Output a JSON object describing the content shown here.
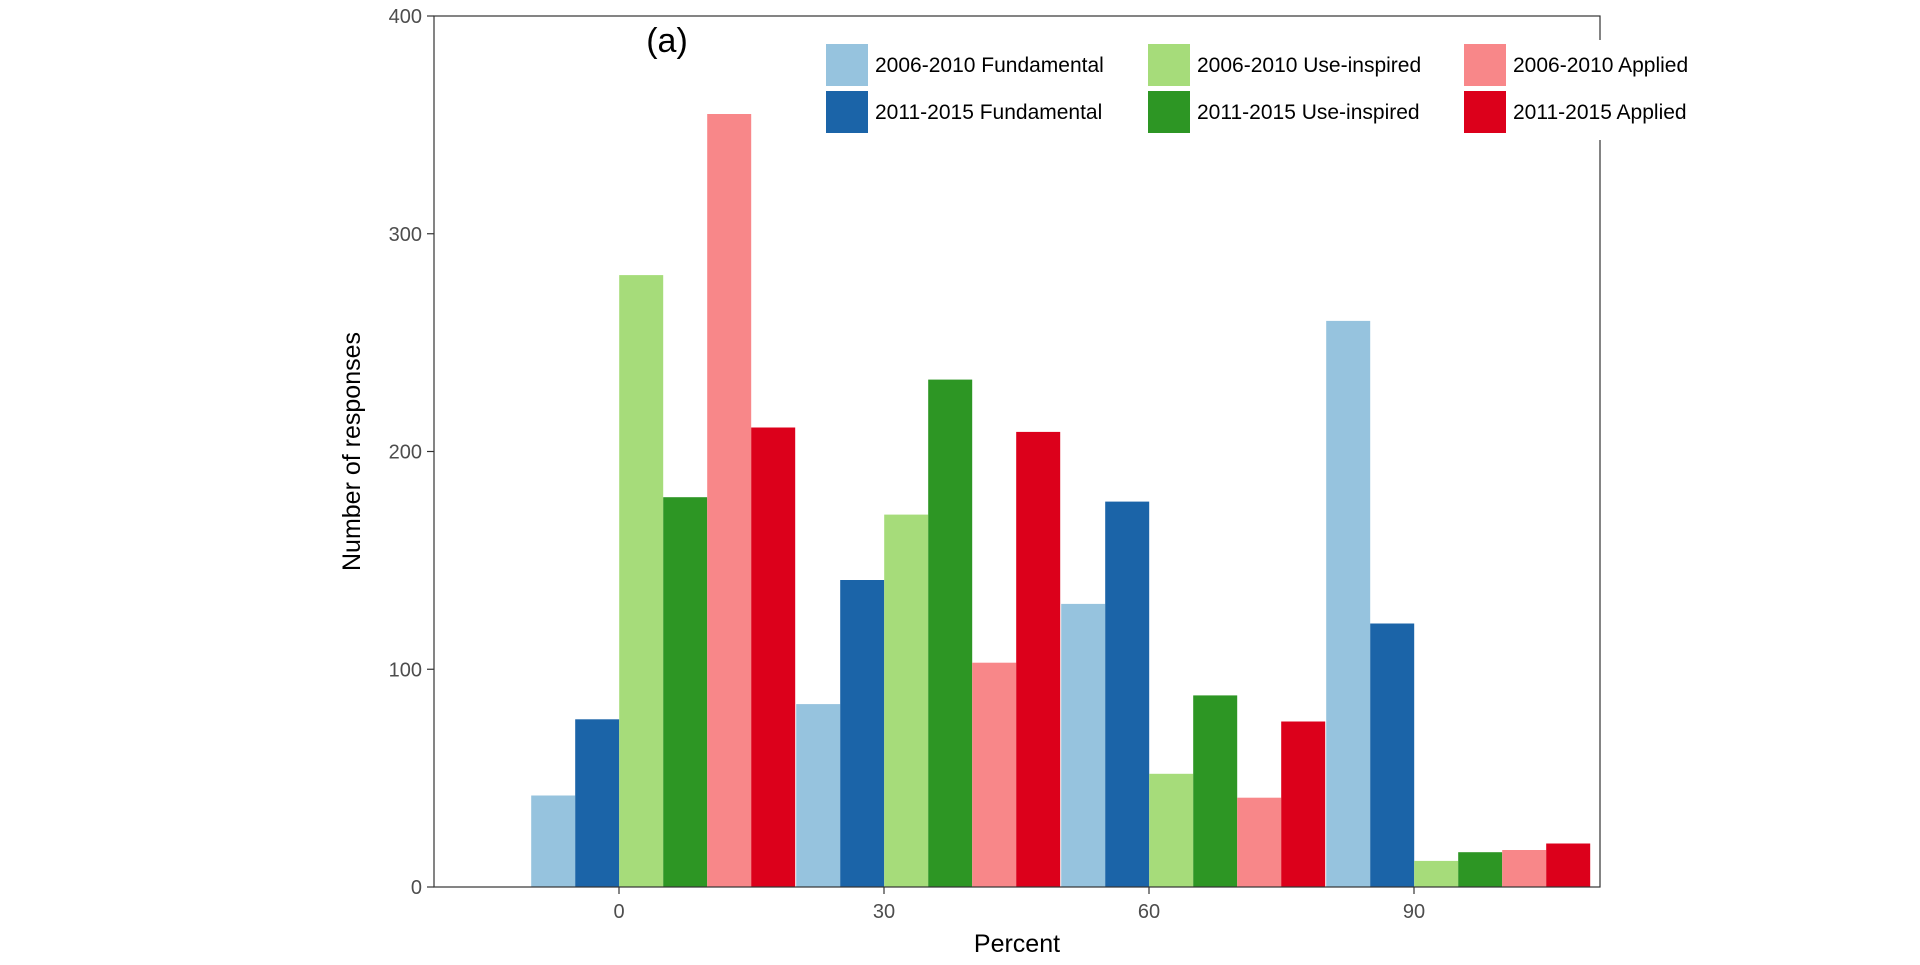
{
  "chart_data": {
    "type": "bar",
    "panel_label": "(a)",
    "xlabel": "Percent",
    "ylabel": "Number of responses",
    "x_ticks": [
      0,
      30,
      60,
      90
    ],
    "x_group_centers": [
      5,
      35,
      65,
      95
    ],
    "ylim": [
      0,
      400
    ],
    "y_ticks": [
      0,
      100,
      200,
      300,
      400
    ],
    "grid": false,
    "legend_position": "top-right",
    "series": [
      {
        "name": "2006-2010 Fundamental",
        "color": "#96c3de",
        "values": [
          42,
          84,
          130,
          260
        ]
      },
      {
        "name": "2011-2015 Fundamental",
        "color": "#1b64a8",
        "values": [
          77,
          141,
          177,
          121
        ]
      },
      {
        "name": "2006-2010 Use-inspired",
        "color": "#a6dc7a",
        "values": [
          281,
          171,
          52,
          12
        ]
      },
      {
        "name": "2011-2015 Use-inspired",
        "color": "#2d9624",
        "values": [
          179,
          233,
          88,
          16
        ]
      },
      {
        "name": "2006-2010 Applied",
        "color": "#f88789",
        "values": [
          355,
          103,
          41,
          17
        ]
      },
      {
        "name": "2011-2015 Applied",
        "color": "#dc001b",
        "values": [
          211,
          209,
          76,
          20
        ]
      }
    ]
  }
}
